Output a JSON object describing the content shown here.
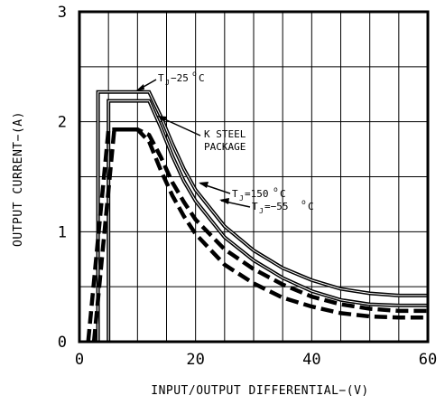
{
  "chart_data": {
    "type": "line",
    "title": "",
    "xlabel": "INPUT/OUTPUT DIFFERENTIAL−(V)",
    "ylabel": "OUTPUT CURRENT−(A)",
    "xlim": [
      0,
      60
    ],
    "ylim": [
      0,
      3
    ],
    "x_ticks": [
      "0",
      "20",
      "40",
      "60"
    ],
    "y_ticks": [
      "0",
      "1",
      "2",
      "3"
    ],
    "grid": true,
    "annotations": {
      "tj25_main": "T",
      "tj25_sub": "J",
      "tj25_value": "−25",
      "tj25_unit": "C",
      "package_line1": "K STEEL",
      "package_line2": "PACKAGE",
      "tj150_main": "T",
      "tj150_sub": "J",
      "tj150_value": "=150",
      "tj150_unit": "C",
      "tjm55_main": "T",
      "tjm55_sub": "J",
      "tjm55_value": "=−55",
      "tjm55_unit": "C",
      "degree_symbol": "o"
    },
    "series": [
      {
        "label_ref": "tj25",
        "style": "solid",
        "x": [
          3.2,
          3.2,
          12,
          14,
          16,
          18,
          20,
          25,
          30,
          35,
          40,
          45,
          50,
          55,
          60
        ],
        "y": [
          0,
          2.27,
          2.27,
          2.05,
          1.8,
          1.57,
          1.38,
          1.05,
          0.83,
          0.67,
          0.56,
          0.48,
          0.44,
          0.42,
          0.42
        ]
      },
      {
        "label_ref": "tj150",
        "style": "solid",
        "x": [
          5,
          5,
          12,
          14,
          16,
          18,
          20,
          25,
          30,
          35,
          40,
          45,
          50,
          55,
          60
        ],
        "y": [
          0,
          2.19,
          2.19,
          1.95,
          1.69,
          1.46,
          1.28,
          0.95,
          0.74,
          0.58,
          0.46,
          0.38,
          0.34,
          0.33,
          0.33
        ]
      },
      {
        "label_ref": "tjm55_a",
        "style": "dashed",
        "x": [
          1.5,
          5,
          5,
          10,
          12,
          14,
          16,
          18,
          20,
          25,
          30,
          35,
          40,
          45,
          50,
          55,
          60
        ],
        "y": [
          0,
          1.93,
          1.93,
          1.93,
          1.88,
          1.68,
          1.45,
          1.27,
          1.11,
          0.84,
          0.66,
          0.52,
          0.41,
          0.34,
          0.3,
          0.28,
          0.28
        ]
      },
      {
        "label_ref": "tjm55_b",
        "style": "dashed",
        "x": [
          2.5,
          6,
          6,
          10,
          12,
          14,
          16,
          18,
          20,
          25,
          30,
          35,
          40,
          45,
          50,
          55,
          60
        ],
        "y": [
          0,
          1.93,
          1.93,
          1.93,
          1.82,
          1.56,
          1.33,
          1.14,
          0.98,
          0.7,
          0.53,
          0.4,
          0.32,
          0.26,
          0.23,
          0.22,
          0.22
        ]
      }
    ]
  }
}
